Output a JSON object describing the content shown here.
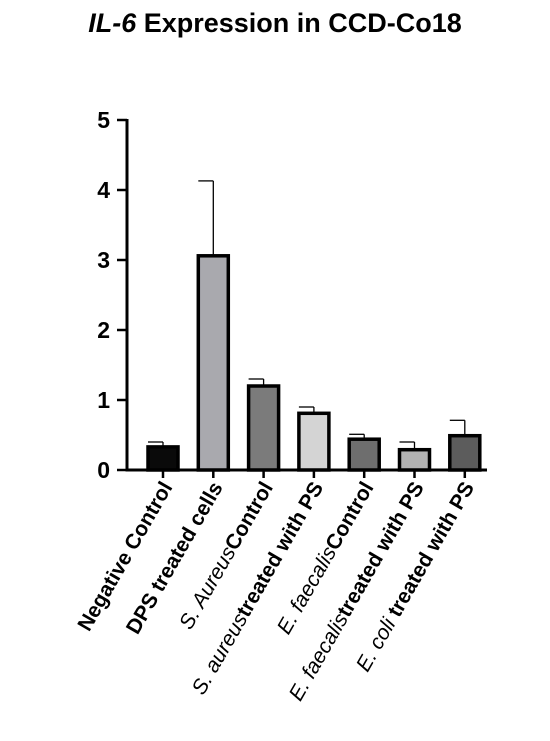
{
  "chart_data": {
    "type": "bar",
    "title_italic": "IL-6",
    "title_rest": " Expression in CCD-Co18",
    "xlabel": "",
    "ylabel": "",
    "ylim": [
      0,
      5
    ],
    "yticks": [
      0,
      1,
      2,
      3,
      4,
      5
    ],
    "grid": false,
    "legend": "none",
    "categories": [
      {
        "parts": [
          {
            "text": "Negative Control",
            "italic": false
          }
        ]
      },
      {
        "parts": [
          {
            "text": "DPS treated cells",
            "italic": false
          }
        ]
      },
      {
        "parts": [
          {
            "text": "S. Aureus",
            "italic": true
          },
          {
            "text": "Control",
            "italic": false
          }
        ]
      },
      {
        "parts": [
          {
            "text": "S. aureus",
            "italic": true
          },
          {
            "text": "treated with PS",
            "italic": false
          }
        ]
      },
      {
        "parts": [
          {
            "text": "E. faecalis",
            "italic": true
          },
          {
            "text": "Control",
            "italic": false
          }
        ]
      },
      {
        "parts": [
          {
            "text": "E. faecalis",
            "italic": true
          },
          {
            "text": "treated with PS",
            "italic": false
          }
        ]
      },
      {
        "parts": [
          {
            "text": "E. coli",
            "italic": true
          },
          {
            "text": " treated with PS",
            "italic": false
          }
        ]
      }
    ],
    "values": [
      0.33,
      3.06,
      1.2,
      0.81,
      0.44,
      0.29,
      0.49
    ],
    "error_upper": [
      0.07,
      1.07,
      0.1,
      0.09,
      0.07,
      0.11,
      0.22
    ],
    "bar_colors": [
      "#0a0a0a",
      "#a9a9ae",
      "#7b7b7b",
      "#d4d4d4",
      "#6e6e6e",
      "#b3b3b3",
      "#5c5c5c"
    ],
    "outline_color": "#000000"
  }
}
